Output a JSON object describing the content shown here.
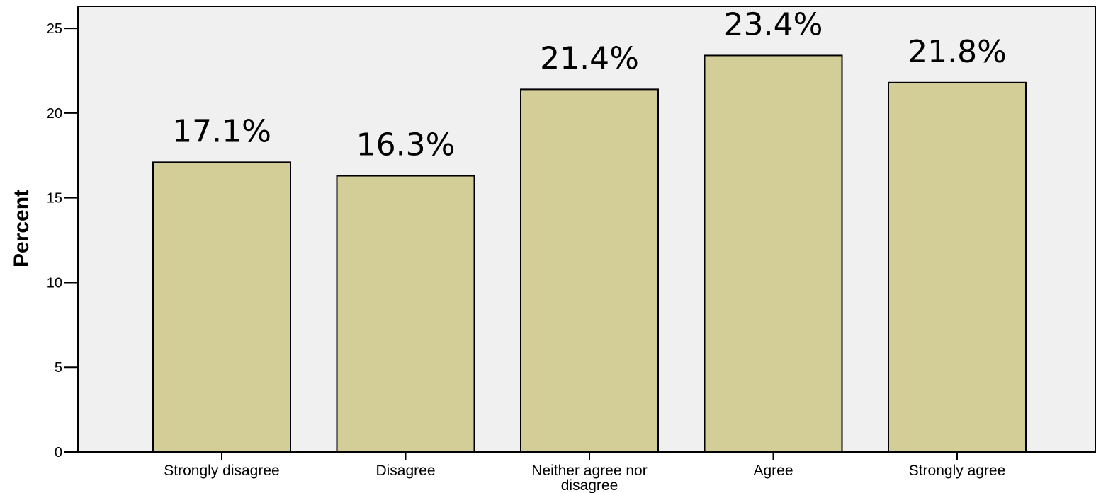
{
  "chart_data": {
    "type": "bar",
    "categories": [
      [
        "Strongly disagree"
      ],
      [
        "Disagree"
      ],
      [
        "Neither agree nor",
        "disagree"
      ],
      [
        "Agree"
      ],
      [
        "Strongly agree"
      ]
    ],
    "values": [
      17.1,
      16.3,
      21.4,
      23.4,
      21.8
    ],
    "data_labels": [
      "17.1%",
      "16.3%",
      "21.4%",
      "23.4%",
      "21.8%"
    ],
    "ylabel": "Percent",
    "xlabel": "",
    "ylim": [
      0,
      26.3
    ],
    "yticks": [
      0,
      5,
      10,
      15,
      20,
      25
    ],
    "grid": false,
    "colors": {
      "plot_background": "#f0f0f0",
      "bar_fill": "#d3ce97",
      "bar_stroke": "#000000"
    }
  }
}
